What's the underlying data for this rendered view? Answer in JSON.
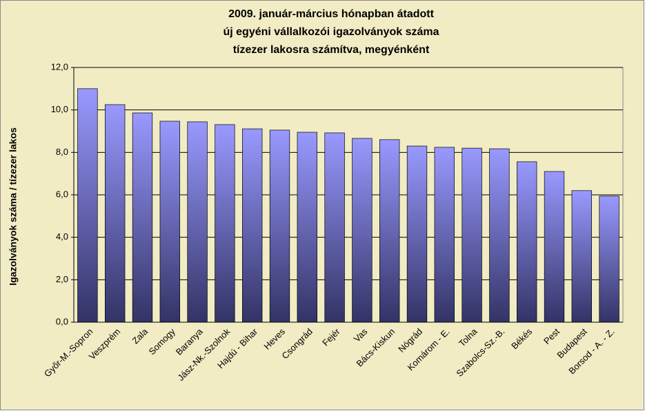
{
  "chart_data": {
    "type": "bar",
    "title": [
      "2009. január-március hónapban átadott",
      "új egyéni vállalkozói  igazolványok száma",
      "tízezer lakosra számítva, megyénként"
    ],
    "y_label": "Igazolványok száma / tízezer lakos",
    "categories": [
      "Győr-M.-Sopron",
      "Veszprém",
      "Zala",
      "Somogy",
      "Baranya",
      "Jász-Nk.-Szolnok",
      "Hajdú - Bihar",
      "Heves",
      "Csongrád",
      "Fejér",
      "Vas",
      "Bács-Kiskun",
      "Nógrád",
      "Komárom - E.",
      "Tolna",
      "Szabolcs-Sz.-B.",
      "Békés",
      "Pest",
      "Budapest",
      "Borsod - A. - Z."
    ],
    "values": [
      11.0,
      10.25,
      9.86,
      9.47,
      9.44,
      9.31,
      9.11,
      9.05,
      8.95,
      8.92,
      8.66,
      8.6,
      8.3,
      8.24,
      8.2,
      8.17,
      7.56,
      7.1,
      6.2,
      5.94
    ],
    "color": "#9999ff",
    "ylim": [
      0,
      12
    ],
    "yticks": [
      {
        "value": 0,
        "label": "0,0"
      },
      {
        "value": 2,
        "label": "2,0"
      },
      {
        "value": 4,
        "label": "4,0"
      },
      {
        "value": 6,
        "label": "6,0"
      },
      {
        "value": 8,
        "label": "8,0"
      },
      {
        "value": 10,
        "label": "10,0"
      },
      {
        "value": 12,
        "label": "12,0"
      }
    ],
    "grid": true
  }
}
